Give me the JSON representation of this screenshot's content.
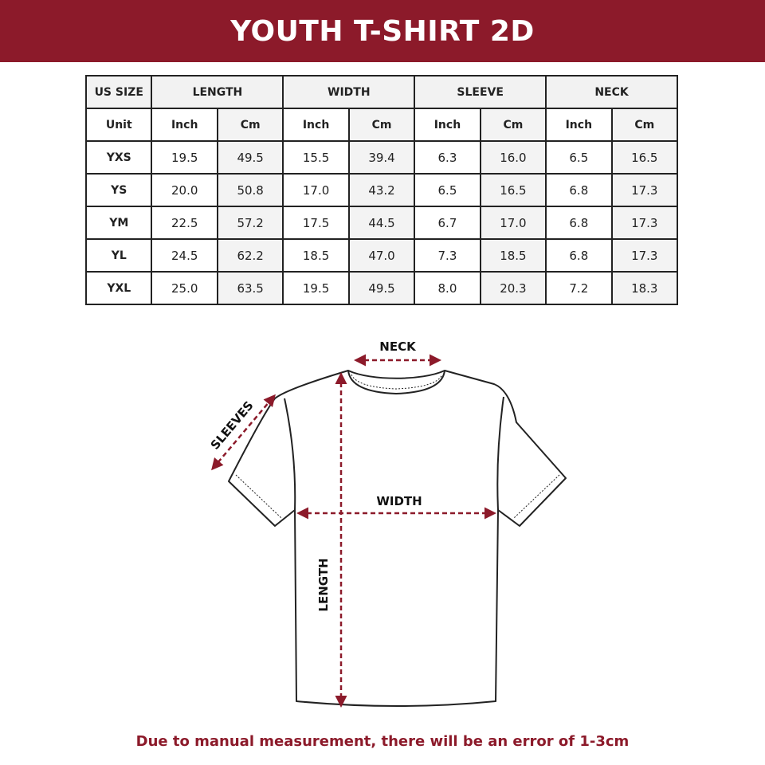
{
  "title": "YOUTH T-SHIRT 2D",
  "accent_color": "#8c1a2a",
  "table": {
    "size_header": "US SIZE",
    "groups": [
      "LENGTH",
      "WIDTH",
      "SLEEVE",
      "NECK"
    ],
    "unit_label": "Unit",
    "units": [
      "Inch",
      "Cm",
      "Inch",
      "Cm",
      "Inch",
      "Cm",
      "Inch",
      "Cm"
    ],
    "rows": [
      {
        "size": "YXS",
        "values": [
          "19.5",
          "49.5",
          "15.5",
          "39.4",
          "6.3",
          "16.0",
          "6.5",
          "16.5"
        ]
      },
      {
        "size": "YS",
        "values": [
          "20.0",
          "50.8",
          "17.0",
          "43.2",
          "6.5",
          "16.5",
          "6.8",
          "17.3"
        ]
      },
      {
        "size": "YM",
        "values": [
          "22.5",
          "57.2",
          "17.5",
          "44.5",
          "6.7",
          "17.0",
          "6.8",
          "17.3"
        ]
      },
      {
        "size": "YL",
        "values": [
          "24.5",
          "62.2",
          "18.5",
          "47.0",
          "7.3",
          "18.5",
          "6.8",
          "17.3"
        ]
      },
      {
        "size": "YXL",
        "values": [
          "25.0",
          "63.5",
          "19.5",
          "49.5",
          "8.0",
          "20.3",
          "7.2",
          "18.3"
        ]
      }
    ]
  },
  "diagram": {
    "neck_label": "NECK",
    "sleeves_label": "SLEEVES",
    "width_label": "WIDTH",
    "length_label": "LENGTH"
  },
  "note": "Due to manual measurement, there will be an error of 1-3cm"
}
